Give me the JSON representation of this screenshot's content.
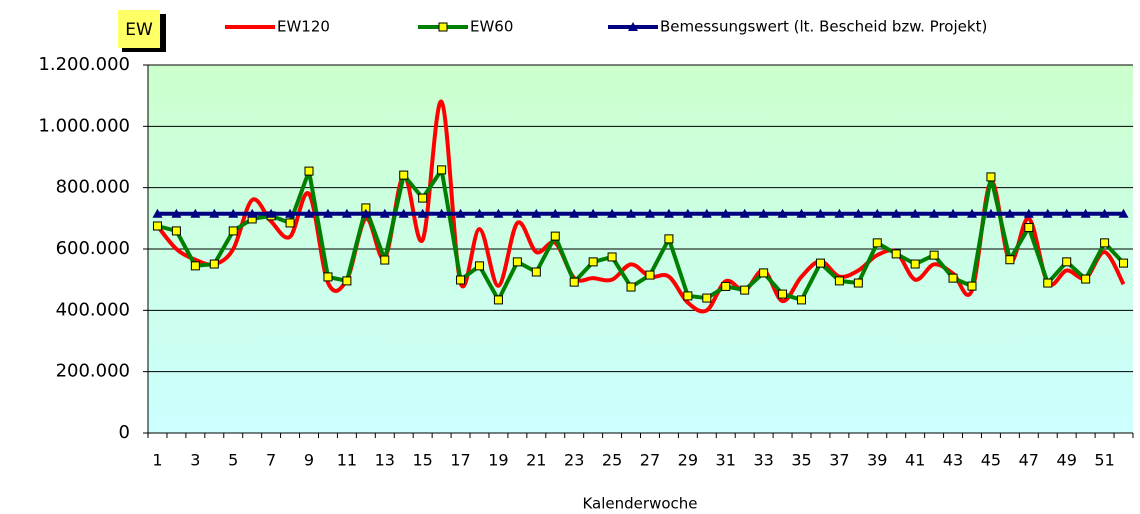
{
  "chart_data": {
    "type": "line",
    "y_label_box": "EW",
    "xlabel": "Kalenderwoche",
    "categories": [
      1,
      null,
      3,
      null,
      5,
      null,
      7,
      null,
      9,
      null,
      11,
      null,
      13,
      null,
      15,
      null,
      17,
      null,
      19,
      null,
      21,
      null,
      23,
      null,
      25,
      null,
      27,
      null,
      29,
      null,
      31,
      null,
      33,
      null,
      35,
      null,
      37,
      null,
      39,
      null,
      41,
      null,
      43,
      null,
      45,
      null,
      47,
      null,
      49,
      null,
      51,
      null
    ],
    "series": [
      {
        "name": "EW120",
        "color": "#ff0000",
        "smooth": true,
        "marker": "none",
        "values": [
          675000,
          600000,
          565000,
          550000,
          600000,
          760000,
          690000,
          640000,
          780000,
          490000,
          500000,
          700000,
          570000,
          840000,
          630000,
          1080000,
          490000,
          665000,
          480000,
          685000,
          590000,
          620000,
          505000,
          505000,
          500000,
          550000,
          510000,
          510000,
          425000,
          400000,
          495000,
          465000,
          530000,
          430000,
          510000,
          560000,
          510000,
          530000,
          580000,
          590000,
          500000,
          550000,
          520000,
          465000,
          820000,
          560000,
          700000,
          490000,
          530000,
          505000,
          590000,
          485000
        ]
      },
      {
        "name": "EW60",
        "color": "#008000",
        "smooth": false,
        "marker": "square",
        "values": [
          675000,
          659000,
          545000,
          551000,
          659000,
          698000,
          708000,
          685000,
          854000,
          509000,
          496000,
          734000,
          564000,
          841000,
          766000,
          858000,
          499000,
          545000,
          434000,
          558000,
          525000,
          642000,
          492000,
          558000,
          574000,
          476000,
          515000,
          633000,
          447000,
          440000,
          478000,
          466000,
          522000,
          453000,
          434000,
          554000,
          496000,
          489000,
          620000,
          584000,
          551000,
          580000,
          505000,
          479000,
          835000,
          565000,
          670000,
          489000,
          558000,
          502000,
          620000,
          554000
        ]
      },
      {
        "name": "Bemessungswert (lt. Bescheid bzw. Projekt)",
        "color": "#000080",
        "smooth": false,
        "marker": "triangle",
        "values": [
          715000,
          715000,
          715000,
          715000,
          715000,
          715000,
          715000,
          715000,
          715000,
          715000,
          715000,
          715000,
          715000,
          715000,
          715000,
          715000,
          715000,
          715000,
          715000,
          715000,
          715000,
          715000,
          715000,
          715000,
          715000,
          715000,
          715000,
          715000,
          715000,
          715000,
          715000,
          715000,
          715000,
          715000,
          715000,
          715000,
          715000,
          715000,
          715000,
          715000,
          715000,
          715000,
          715000,
          715000,
          715000,
          715000,
          715000,
          715000,
          715000,
          715000,
          715000,
          715000
        ]
      }
    ],
    "ylim": [
      0,
      1200000
    ],
    "yticks": [
      0,
      {
        "value": 200000,
        "label": "200.000"
      },
      {
        "value": 400000,
        "label": "400.000"
      },
      {
        "value": 600000,
        "label": "600.000"
      },
      {
        "value": 800000,
        "label": "800.000"
      },
      {
        "value": 1000000,
        "label": "1.000.000"
      },
      {
        "value": 1200000,
        "label": "1.200.000"
      }
    ],
    "grid": true,
    "legend": "top"
  }
}
